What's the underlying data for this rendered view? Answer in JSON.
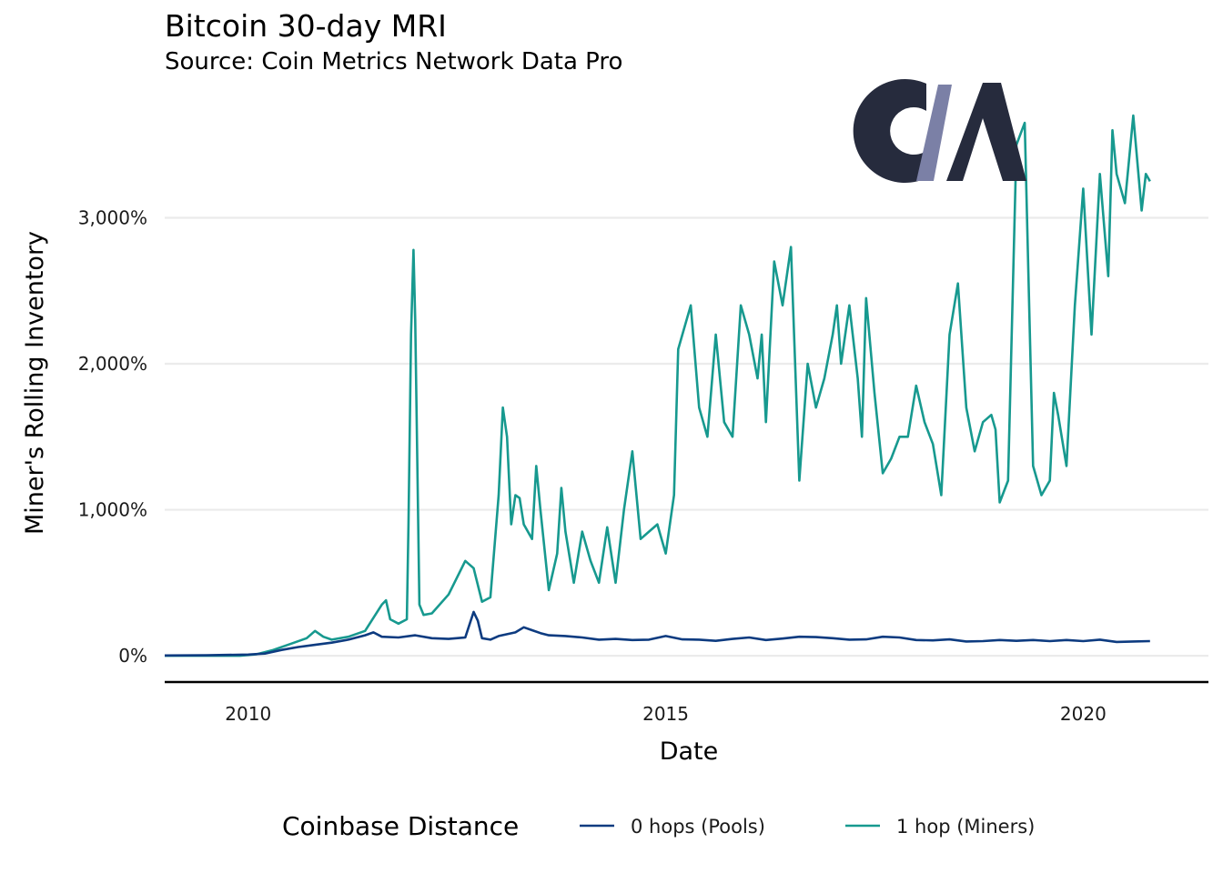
{
  "chart_data": {
    "type": "line",
    "title": "Bitcoin 30-day MRI",
    "subtitle": "Source: Coin Metrics Network Data Pro",
    "xlabel": "Date",
    "ylabel": "Miner's Rolling Inventory",
    "xlim": [
      2009.0,
      2021.5
    ],
    "ylim": [
      -180,
      3900
    ],
    "x_ticks": [
      2010,
      2015,
      2020
    ],
    "x_tick_labels": [
      "2010",
      "2015",
      "2020"
    ],
    "y_ticks": [
      0,
      1000,
      2000,
      3000
    ],
    "y_tick_labels": [
      "0%",
      "1,000%",
      "2,000%",
      "3,000%"
    ],
    "legend_title": "Coinbase Distance",
    "legend_position": "bottom",
    "colors": {
      "pools": "#0d3b80",
      "miners": "#17998f",
      "logo_dark": "#262b3d",
      "logo_accent": "#7b80a6"
    },
    "logo_letters": "CM",
    "series": [
      {
        "name": "0 hops (Pools)",
        "color": "#0d3b80",
        "x": [
          2009.0,
          2009.5,
          2010.0,
          2010.2,
          2010.4,
          2010.6,
          2010.8,
          2011.0,
          2011.2,
          2011.4,
          2011.5,
          2011.6,
          2011.8,
          2012.0,
          2012.2,
          2012.4,
          2012.6,
          2012.7,
          2012.75,
          2012.8,
          2012.9,
          2013.0,
          2013.2,
          2013.3,
          2013.4,
          2013.5,
          2013.6,
          2013.8,
          2014.0,
          2014.2,
          2014.4,
          2014.6,
          2014.8,
          2015.0,
          2015.2,
          2015.4,
          2015.6,
          2015.8,
          2016.0,
          2016.2,
          2016.4,
          2016.6,
          2016.8,
          2017.0,
          2017.2,
          2017.4,
          2017.6,
          2017.8,
          2018.0,
          2018.2,
          2018.4,
          2018.6,
          2018.8,
          2019.0,
          2019.2,
          2019.4,
          2019.6,
          2019.8,
          2020.0,
          2020.2,
          2020.4,
          2020.6,
          2020.8
        ],
        "values": [
          2,
          3,
          8,
          15,
          40,
          60,
          75,
          90,
          110,
          140,
          160,
          130,
          125,
          140,
          120,
          115,
          125,
          300,
          240,
          120,
          110,
          135,
          160,
          195,
          175,
          155,
          140,
          135,
          125,
          110,
          115,
          108,
          110,
          135,
          112,
          110,
          102,
          115,
          125,
          108,
          118,
          130,
          128,
          120,
          110,
          112,
          130,
          125,
          108,
          105,
          112,
          98,
          100,
          108,
          102,
          108,
          100,
          108,
          100,
          110,
          95,
          98,
          100
        ]
      },
      {
        "name": "1 hop (Miners)",
        "color": "#17998f",
        "x": [
          2009.0,
          2009.3,
          2009.6,
          2009.9,
          2010.1,
          2010.3,
          2010.5,
          2010.7,
          2010.8,
          2010.9,
          2011.0,
          2011.2,
          2011.4,
          2011.6,
          2011.65,
          2011.7,
          2011.8,
          2011.9,
          2011.92,
          2011.95,
          2011.98,
          2012.0,
          2012.05,
          2012.1,
          2012.2,
          2012.4,
          2012.6,
          2012.7,
          2012.8,
          2012.9,
          2013.0,
          2013.05,
          2013.1,
          2013.15,
          2013.2,
          2013.25,
          2013.3,
          2013.4,
          2013.45,
          2013.5,
          2013.6,
          2013.7,
          2013.75,
          2013.8,
          2013.9,
          2014.0,
          2014.1,
          2014.2,
          2014.3,
          2014.4,
          2014.5,
          2014.6,
          2014.7,
          2014.8,
          2014.9,
          2015.0,
          2015.1,
          2015.15,
          2015.2,
          2015.3,
          2015.4,
          2015.5,
          2015.6,
          2015.7,
          2015.8,
          2015.9,
          2016.0,
          2016.1,
          2016.15,
          2016.2,
          2016.3,
          2016.4,
          2016.5,
          2016.6,
          2016.7,
          2016.8,
          2016.9,
          2017.0,
          2017.05,
          2017.1,
          2017.2,
          2017.3,
          2017.35,
          2017.4,
          2017.5,
          2017.6,
          2017.7,
          2017.8,
          2017.9,
          2018.0,
          2018.1,
          2018.2,
          2018.3,
          2018.4,
          2018.5,
          2018.6,
          2018.7,
          2018.8,
          2018.9,
          2018.95,
          2019.0,
          2019.1,
          2019.2,
          2019.3,
          2019.4,
          2019.5,
          2019.6,
          2019.65,
          2019.7,
          2019.8,
          2019.9,
          2020.0,
          2020.1,
          2020.2,
          2020.3,
          2020.35,
          2020.4,
          2020.5,
          2020.6,
          2020.7,
          2020.75,
          2020.8
        ],
        "values": [
          0,
          0,
          0,
          0,
          10,
          40,
          80,
          120,
          170,
          130,
          110,
          130,
          170,
          350,
          380,
          250,
          220,
          250,
          900,
          2200,
          2780,
          2300,
          350,
          280,
          290,
          420,
          650,
          600,
          370,
          400,
          1100,
          1700,
          1500,
          900,
          1100,
          1080,
          900,
          800,
          1300,
          1000,
          450,
          700,
          1150,
          850,
          500,
          850,
          650,
          500,
          880,
          500,
          1000,
          1400,
          800,
          850,
          900,
          700,
          1100,
          2100,
          2200,
          2400,
          1700,
          1500,
          2200,
          1600,
          1500,
          2400,
          2200,
          1900,
          2200,
          1600,
          2700,
          2400,
          2800,
          1200,
          2000,
          1700,
          1900,
          2200,
          2400,
          2000,
          2400,
          1900,
          1500,
          2450,
          1800,
          1250,
          1350,
          1500,
          1500,
          1850,
          1600,
          1450,
          1100,
          2200,
          2550,
          1700,
          1400,
          1600,
          1650,
          1550,
          1050,
          1200,
          3500,
          3650,
          1300,
          1100,
          1200,
          1800,
          1650,
          1300,
          2400,
          3200,
          2200,
          3300,
          2600,
          3600,
          3300,
          3100,
          3700,
          3050,
          3300,
          3250
        ]
      }
    ]
  }
}
